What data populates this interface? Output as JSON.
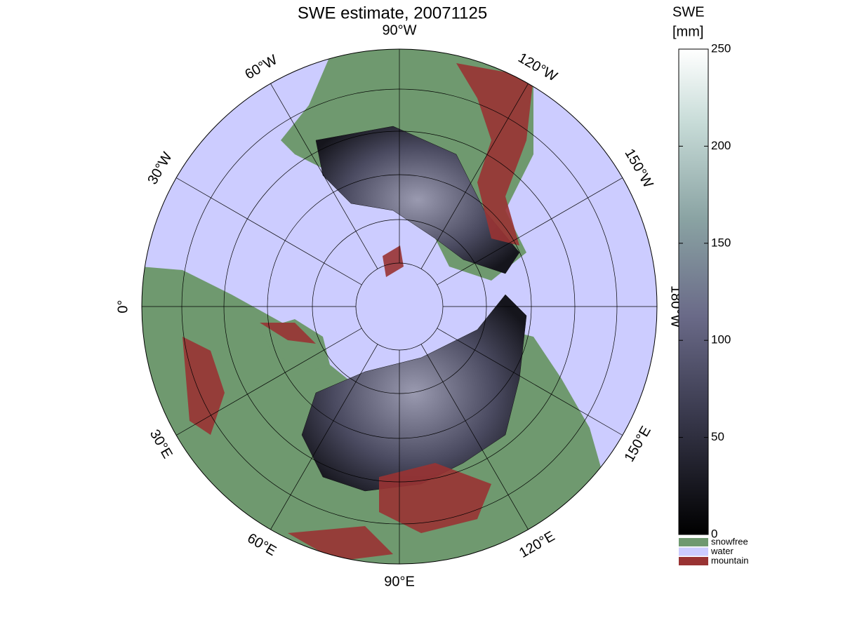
{
  "title": "SWE estimate, 20071125",
  "map": {
    "meridian_labels": [
      "0°",
      "30°E",
      "60°E",
      "90°E",
      "120°E",
      "150°E",
      "180°W",
      "150°W",
      "120°W",
      "90°W",
      "60°W",
      "30°W"
    ]
  },
  "colorbar": {
    "label": [
      "SWE",
      "[mm]"
    ],
    "lim": [
      0,
      250
    ],
    "ticks": [
      0,
      50,
      100,
      150,
      200,
      250
    ]
  },
  "legend": [
    {
      "name": "snowfree",
      "color": "#6f996f"
    },
    {
      "name": "water",
      "color": "#ccccff"
    },
    {
      "name": "mountain",
      "color": "#993333"
    }
  ]
}
